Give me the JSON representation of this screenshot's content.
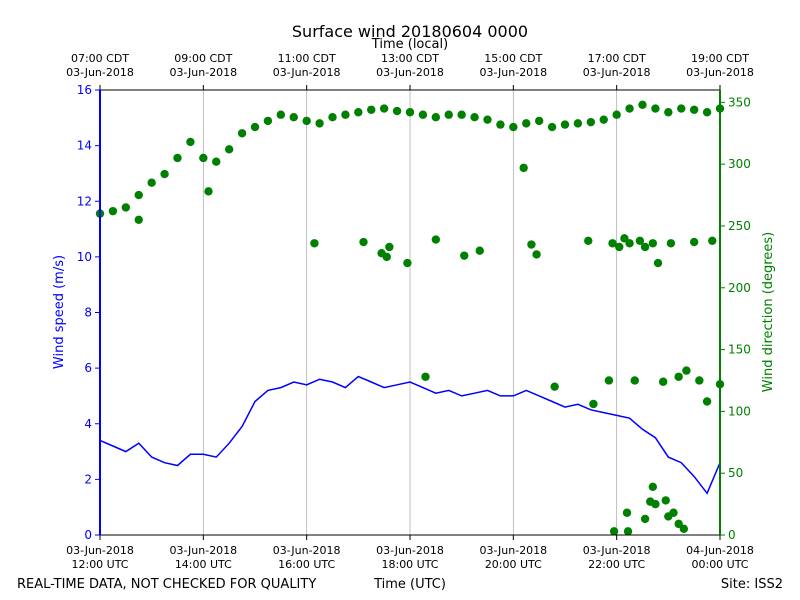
{
  "chart_data": {
    "type": "line+scatter",
    "title": "Surface wind 20180604 0000",
    "top_axis_title": "Time (local)",
    "xlabel": "Time (UTC)",
    "ylabel_left": "Wind speed (m/s)",
    "ylabel_right": "Wind direction (degrees)",
    "x_range_hours_utc": [
      12,
      24
    ],
    "y_left_range": [
      0,
      16
    ],
    "y_right_range": [
      0,
      360
    ],
    "y_left_ticks": [
      0,
      2,
      4,
      6,
      8,
      10,
      12,
      14,
      16
    ],
    "y_right_ticks": [
      0,
      50,
      100,
      150,
      200,
      250,
      300,
      350
    ],
    "bottom_ticks": [
      {
        "hour": 12,
        "line1": "03-Jun-2018",
        "line2": "12:00 UTC"
      },
      {
        "hour": 14,
        "line1": "03-Jun-2018",
        "line2": "14:00 UTC"
      },
      {
        "hour": 16,
        "line1": "03-Jun-2018",
        "line2": "16:00 UTC"
      },
      {
        "hour": 18,
        "line1": "03-Jun-2018",
        "line2": "18:00 UTC"
      },
      {
        "hour": 20,
        "line1": "03-Jun-2018",
        "line2": "20:00 UTC"
      },
      {
        "hour": 22,
        "line1": "03-Jun-2018",
        "line2": "22:00 UTC"
      },
      {
        "hour": 24,
        "line1": "04-Jun-2018",
        "line2": "00:00 UTC"
      }
    ],
    "top_ticks": [
      {
        "hour": 12,
        "line1": "07:00 CDT",
        "line2": "03-Jun-2018"
      },
      {
        "hour": 14,
        "line1": "09:00 CDT",
        "line2": "03-Jun-2018"
      },
      {
        "hour": 16,
        "line1": "11:00 CDT",
        "line2": "03-Jun-2018"
      },
      {
        "hour": 18,
        "line1": "13:00 CDT",
        "line2": "03-Jun-2018"
      },
      {
        "hour": 20,
        "line1": "15:00 CDT",
        "line2": "03-Jun-2018"
      },
      {
        "hour": 22,
        "line1": "17:00 CDT",
        "line2": "03-Jun-2018"
      },
      {
        "hour": 24,
        "line1": "19:00 CDT",
        "line2": "03-Jun-2018"
      }
    ],
    "series": [
      {
        "name": "Wind speed",
        "kind": "line",
        "axis": "left",
        "color": "#0000ff",
        "x": [
          12.0,
          12.25,
          12.5,
          12.75,
          13.0,
          13.25,
          13.5,
          13.75,
          14.0,
          14.25,
          14.5,
          14.75,
          15.0,
          15.25,
          15.5,
          15.75,
          16.0,
          16.25,
          16.5,
          16.75,
          17.0,
          17.25,
          17.5,
          17.75,
          18.0,
          18.25,
          18.5,
          18.75,
          19.0,
          19.25,
          19.5,
          19.75,
          20.0,
          20.25,
          20.5,
          20.75,
          21.0,
          21.25,
          21.5,
          21.75,
          22.0,
          22.25,
          22.5,
          22.75,
          23.0,
          23.25,
          23.5,
          23.75,
          24.0
        ],
        "values": [
          3.4,
          3.2,
          3.0,
          3.3,
          2.8,
          2.6,
          2.5,
          2.9,
          2.9,
          2.8,
          3.3,
          3.9,
          4.8,
          5.2,
          5.3,
          5.5,
          5.4,
          5.6,
          5.5,
          5.3,
          5.7,
          5.5,
          5.3,
          5.4,
          5.5,
          5.3,
          5.1,
          5.2,
          5.0,
          5.1,
          5.2,
          5.0,
          5.0,
          5.2,
          5.0,
          4.8,
          4.6,
          4.7,
          4.5,
          4.4,
          4.3,
          4.2,
          3.8,
          3.5,
          2.8,
          2.6,
          2.1,
          1.5,
          2.6
        ]
      },
      {
        "name": "Wind direction",
        "kind": "scatter",
        "axis": "right",
        "color": "#008000",
        "x": [
          12.0,
          12.25,
          12.5,
          12.75,
          13.0,
          13.25,
          13.5,
          13.75,
          14.0,
          14.25,
          14.5,
          14.75,
          15.0,
          15.25,
          15.5,
          15.75,
          16.0,
          16.25,
          16.5,
          16.75,
          17.0,
          17.25,
          17.5,
          17.75,
          18.0,
          18.25,
          18.5,
          18.75,
          19.0,
          19.25,
          19.5,
          19.75,
          20.0,
          20.25,
          20.5,
          20.75,
          21.0,
          21.25,
          21.5,
          21.75,
          22.0,
          22.25,
          22.5,
          22.75,
          23.0,
          23.25,
          23.5,
          23.75,
          24.0
        ],
        "values": [
          260,
          262,
          265,
          275,
          285,
          292,
          305,
          318,
          305,
          302,
          312,
          325,
          330,
          335,
          340,
          338,
          335,
          333,
          338,
          340,
          342,
          344,
          345,
          343,
          342,
          340,
          338,
          340,
          340,
          338,
          336,
          332,
          330,
          333,
          335,
          330,
          332,
          333,
          334,
          336,
          340,
          345,
          348,
          345,
          342,
          345,
          344,
          342,
          345
        ]
      }
    ],
    "outliers": [
      {
        "x": 12.75,
        "y": 255
      },
      {
        "x": 14.1,
        "y": 278
      },
      {
        "x": 16.15,
        "y": 236
      },
      {
        "x": 17.1,
        "y": 237
      },
      {
        "x": 17.45,
        "y": 228
      },
      {
        "x": 17.55,
        "y": 225
      },
      {
        "x": 17.6,
        "y": 233
      },
      {
        "x": 17.95,
        "y": 220
      },
      {
        "x": 18.5,
        "y": 239
      },
      {
        "x": 18.3,
        "y": 128
      },
      {
        "x": 19.05,
        "y": 226
      },
      {
        "x": 19.35,
        "y": 230
      },
      {
        "x": 20.35,
        "y": 235
      },
      {
        "x": 20.45,
        "y": 227
      },
      {
        "x": 20.2,
        "y": 297
      },
      {
        "x": 20.8,
        "y": 120
      },
      {
        "x": 21.45,
        "y": 238
      },
      {
        "x": 21.55,
        "y": 106
      },
      {
        "x": 21.85,
        "y": 125
      },
      {
        "x": 21.92,
        "y": 236
      },
      {
        "x": 22.05,
        "y": 233
      },
      {
        "x": 22.15,
        "y": 240
      },
      {
        "x": 22.25,
        "y": 236
      },
      {
        "x": 22.35,
        "y": 125
      },
      {
        "x": 22.45,
        "y": 238
      },
      {
        "x": 22.55,
        "y": 233
      },
      {
        "x": 22.7,
        "y": 236
      },
      {
        "x": 22.8,
        "y": 220
      },
      {
        "x": 22.9,
        "y": 124
      },
      {
        "x": 23.05,
        "y": 236
      },
      {
        "x": 23.2,
        "y": 128
      },
      {
        "x": 23.35,
        "y": 133
      },
      {
        "x": 23.5,
        "y": 237
      },
      {
        "x": 23.6,
        "y": 125
      },
      {
        "x": 23.75,
        "y": 108
      },
      {
        "x": 23.85,
        "y": 238
      },
      {
        "x": 24.0,
        "y": 122
      },
      {
        "x": 21.95,
        "y": 3
      },
      {
        "x": 22.2,
        "y": 18
      },
      {
        "x": 22.22,
        "y": 3
      },
      {
        "x": 22.55,
        "y": 13
      },
      {
        "x": 22.65,
        "y": 27
      },
      {
        "x": 22.7,
        "y": 39
      },
      {
        "x": 22.75,
        "y": 25
      },
      {
        "x": 22.95,
        "y": 28
      },
      {
        "x": 23.0,
        "y": 15
      },
      {
        "x": 23.1,
        "y": 18
      },
      {
        "x": 23.2,
        "y": 9
      },
      {
        "x": 23.3,
        "y": 5
      }
    ]
  },
  "footer": {
    "left": "REAL-TIME DATA, NOT CHECKED FOR QUALITY",
    "center": "Time (UTC)",
    "right": "Site: ISS2"
  },
  "colors": {
    "speed": "#0000ff",
    "direction": "#008000",
    "grid": "#b0b0b0",
    "text": "#000000"
  }
}
